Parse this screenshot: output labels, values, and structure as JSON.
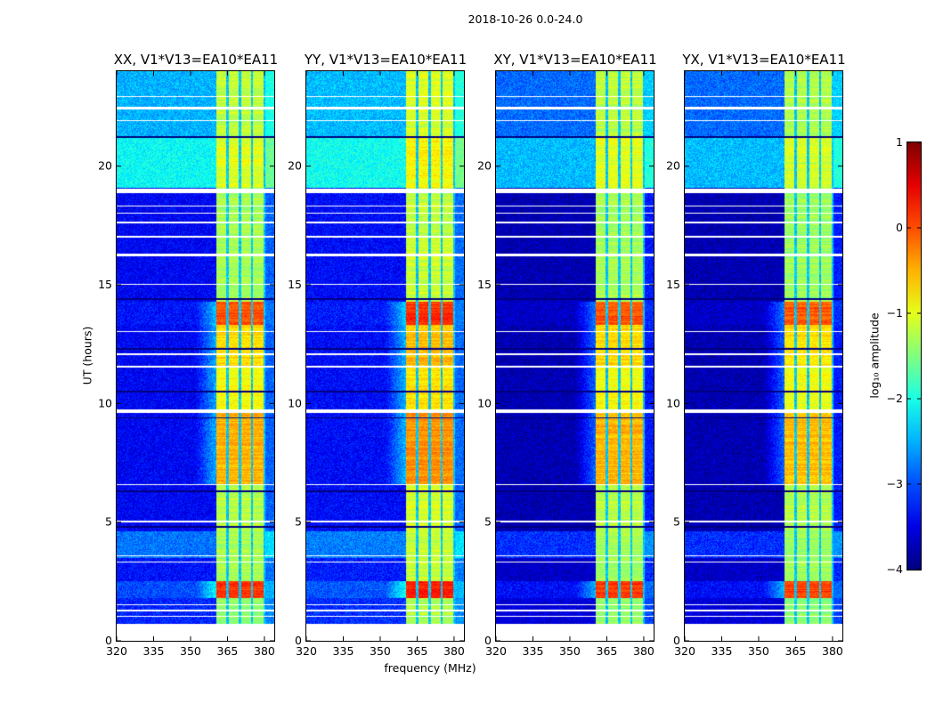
{
  "chart_data": {
    "type": "heatmap",
    "suptitle": "2018-10-26 0.0-24.0",
    "xlabel": "frequency (MHz)",
    "ylabel": "UT (hours)",
    "xlim": [
      320,
      384
    ],
    "ylim": [
      0,
      24
    ],
    "xticks": [
      320,
      335,
      350,
      365,
      380
    ],
    "xtick_labels": [
      "320",
      "335",
      "350",
      "365",
      "380"
    ],
    "yticks": [
      0,
      5,
      10,
      15,
      20
    ],
    "ytick_labels": [
      "0",
      "5",
      "10",
      "15",
      "20"
    ],
    "colorbar": {
      "label": "log₁₀ amplitude",
      "range": [
        -4,
        1
      ],
      "ticks": [
        -4,
        -3,
        -2,
        -1,
        0,
        1
      ],
      "tick_labels": [
        "−4",
        "−3",
        "−2",
        "−1",
        "0",
        "1"
      ],
      "colormap": "jet"
    },
    "panels": [
      {
        "title": "XX, V1*V13=EA10*EA11",
        "bg_offset": 0.0,
        "band_offset": 0.0
      },
      {
        "title": "YY, V1*V13=EA10*EA11",
        "bg_offset": 0.05,
        "band_offset": 0.15
      },
      {
        "title": "XY, V1*V13=EA10*EA11",
        "bg_offset": -0.35,
        "band_offset": 0.0
      },
      {
        "title": "YX, V1*V13=EA10*EA11",
        "bg_offset": -0.35,
        "band_offset": -0.05
      }
    ],
    "band_MHz": [
      360.5,
      380.5
    ],
    "channel_edges_MHz": [
      365,
      370,
      375,
      380
    ],
    "time_segments": [
      {
        "ut": [
          0.7,
          1.8
        ],
        "background": -3.2,
        "band": -1.4
      },
      {
        "ut": [
          1.8,
          2.5
        ],
        "background": -3.0,
        "band": 0.1
      },
      {
        "ut": [
          2.5,
          3.5
        ],
        "background": -3.3,
        "band": -1.3
      },
      {
        "ut": [
          3.5,
          4.6
        ],
        "background": -2.8,
        "band": -1.3
      },
      {
        "ut": [
          4.6,
          6.6
        ],
        "background": -3.4,
        "band": -1.2
      },
      {
        "ut": [
          6.6,
          9.6
        ],
        "background": -3.4,
        "band": -0.5
      },
      {
        "ut": [
          9.6,
          11.6
        ],
        "background": -3.4,
        "band": -0.9
      },
      {
        "ut": [
          11.6,
          13.3
        ],
        "background": -3.4,
        "band": -0.7
      },
      {
        "ut": [
          13.3,
          14.3
        ],
        "background": -3.3,
        "band": 0.0
      },
      {
        "ut": [
          14.3,
          19.1
        ],
        "background": -3.4,
        "band": -1.3
      },
      {
        "ut": [
          19.1,
          21.2
        ],
        "background": -2.1,
        "band": -1.0
      },
      {
        "ut": [
          21.2,
          24.0
        ],
        "background": -2.5,
        "band": -1.2
      }
    ],
    "flagged_ut_ranges": [
      [
        0,
        0.7
      ],
      [
        1.0,
        1.05
      ],
      [
        1.25,
        1.3
      ],
      [
        1.5,
        1.55
      ],
      [
        3.3,
        3.35
      ],
      [
        3.55,
        3.6
      ],
      [
        5.0,
        5.05
      ],
      [
        6.55,
        6.6
      ],
      [
        9.6,
        9.75
      ],
      [
        11.5,
        11.6
      ],
      [
        12.05,
        12.1
      ],
      [
        13.0,
        13.05
      ],
      [
        15.0,
        15.05
      ],
      [
        16.2,
        16.3
      ],
      [
        17.0,
        17.05
      ],
      [
        17.6,
        17.65
      ],
      [
        18.0,
        18.05
      ],
      [
        18.3,
        18.35
      ],
      [
        18.85,
        19.05
      ],
      [
        21.9,
        21.95
      ],
      [
        22.4,
        22.5
      ],
      [
        22.9,
        22.95
      ]
    ],
    "dropout_ut": [
      4.8,
      6.3,
      9.4,
      10.5,
      12.3,
      14.4,
      21.2,
      21.25
    ]
  }
}
